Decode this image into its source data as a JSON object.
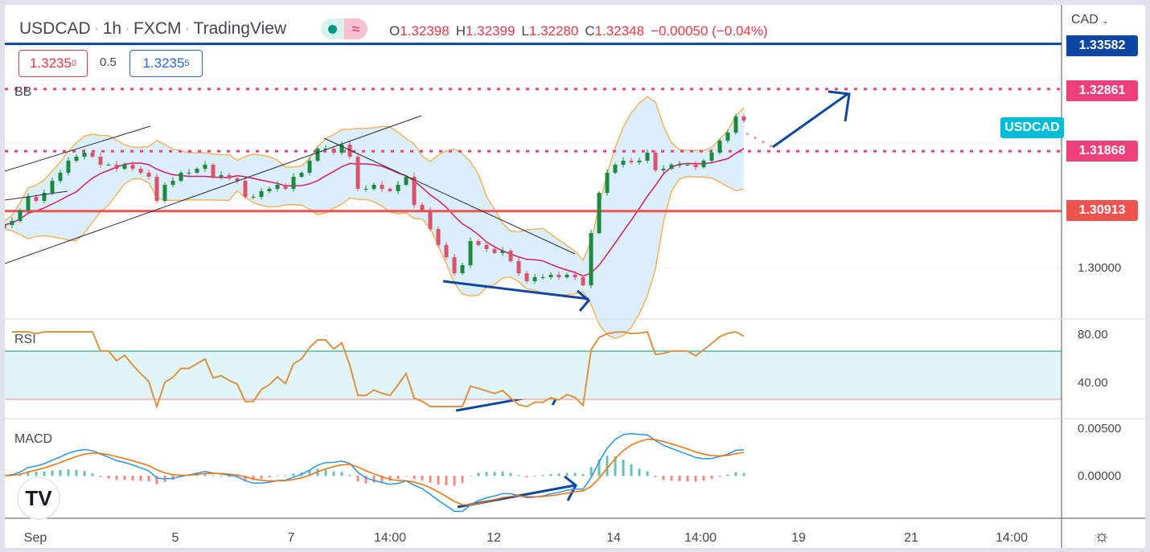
{
  "header": {
    "symbol": "USDCAD",
    "interval": "1h",
    "exchange": "FXCM",
    "source": "TradingView",
    "sep": "·",
    "market_status_icon": "market-open-dot",
    "delay_icon": "≈",
    "ohlc": {
      "o_label": "O",
      "o": "1.32398",
      "h_label": "H",
      "h": "1.32399",
      "l_label": "L",
      "l": "1.32280",
      "c_label": "C",
      "c": "1.32348",
      "change": "−0.00050 (−0.04%)"
    }
  },
  "trade": {
    "sell": "1.3235",
    "sell_pip": "0",
    "spread": "0.5",
    "buy": "1.3235",
    "buy_pip": "5"
  },
  "price_axis": {
    "currency": "CAD",
    "labels": [
      "1.30000"
    ],
    "tags": [
      {
        "value": "1.33582",
        "color": "#0d47a1"
      },
      {
        "value": "1.32861",
        "color": "#ec407a"
      },
      {
        "value": "1.31868",
        "color": "#ec407a"
      },
      {
        "value": "1.30913",
        "color": "#ef5350"
      }
    ],
    "symbol_tag": "USDCAD"
  },
  "rsi_axis": {
    "title": "RSI",
    "labels": [
      "80.00",
      "40.00"
    ]
  },
  "macd_axis": {
    "title": "MACD",
    "labels": [
      "0.00500",
      "0.00000"
    ]
  },
  "bb_title": "BB",
  "time_axis": [
    "Sep",
    "5",
    "7",
    "14:00",
    "12",
    "14",
    "14:00",
    "19",
    "21",
    "14:00"
  ],
  "settings_icon": "gear-icon",
  "logo_text": "TV",
  "colors": {
    "up": "#26a69a",
    "down": "#ef5350",
    "candle_up": "#1b8a3c",
    "candle_down": "#d9546a",
    "bb": "#f7b35c",
    "basis": "#d81b60",
    "rsi": "#e0913f",
    "macd": "#2196f3",
    "signal": "#ff6d00",
    "arrow": "#0d47a1"
  },
  "chart_data": {
    "type": "candlestick",
    "title": "USDCAD · 1h · FXCM",
    "ylim": [
      1.2935,
      1.3405
    ],
    "closes": [
      1.30692,
      1.30756,
      1.30923,
      1.31141,
      1.31077,
      1.31205,
      1.31397,
      1.31526,
      1.31718,
      1.31782,
      1.31846,
      1.31782,
      1.31654,
      1.31654,
      1.3159,
      1.31654,
      1.3159,
      1.31526,
      1.31462,
      1.31077,
      1.31333,
      1.31397,
      1.31526,
      1.31526,
      1.3159,
      1.31654,
      1.31462,
      1.31487,
      1.31436,
      1.31397,
      1.31141,
      1.31141,
      1.31231,
      1.31269,
      1.31333,
      1.31269,
      1.31462,
      1.31526,
      1.31718,
      1.3191,
      1.3191,
      1.31846,
      1.31974,
      1.31782,
      1.31269,
      1.31269,
      1.31333,
      1.31269,
      1.31231,
      1.31333,
      1.31462,
      1.31013,
      1.30923,
      1.30628,
      1.30372,
      1.30179,
      1.29923,
      1.30051,
      1.30436,
      1.30372,
      1.30308,
      1.30244,
      1.30282,
      1.30115,
      1.29923,
      1.29795,
      1.29859,
      1.29859,
      1.29897,
      1.29859,
      1.29897,
      1.29859,
      1.29731,
      1.30564,
      1.31205,
      1.31526,
      1.31654,
      1.31718,
      1.31692,
      1.31718,
      1.31846,
      1.31564,
      1.3159,
      1.31654,
      1.31654,
      1.31654,
      1.31615,
      1.31718,
      1.31846,
      1.32038,
      1.32167,
      1.32423,
      1.32359
    ],
    "indicators": {
      "bb": {
        "period": 10,
        "mult": 2
      },
      "rsi": {
        "period": 7,
        "upper": 70,
        "lower": 30,
        "ylim": [
          20,
          90
        ]
      },
      "macd": {
        "fast": 6,
        "slow": 13,
        "signal": 5
      }
    },
    "levels": [
      {
        "price": 1.33582,
        "style": "solid",
        "color": "#0d47a1"
      },
      {
        "price": 1.32861,
        "style": "dotted",
        "color": "#ec407a"
      },
      {
        "price": 1.31868,
        "style": "dotted",
        "color": "#ec407a"
      },
      {
        "price": 1.30913,
        "style": "solid",
        "color": "#ef5350"
      }
    ]
  }
}
